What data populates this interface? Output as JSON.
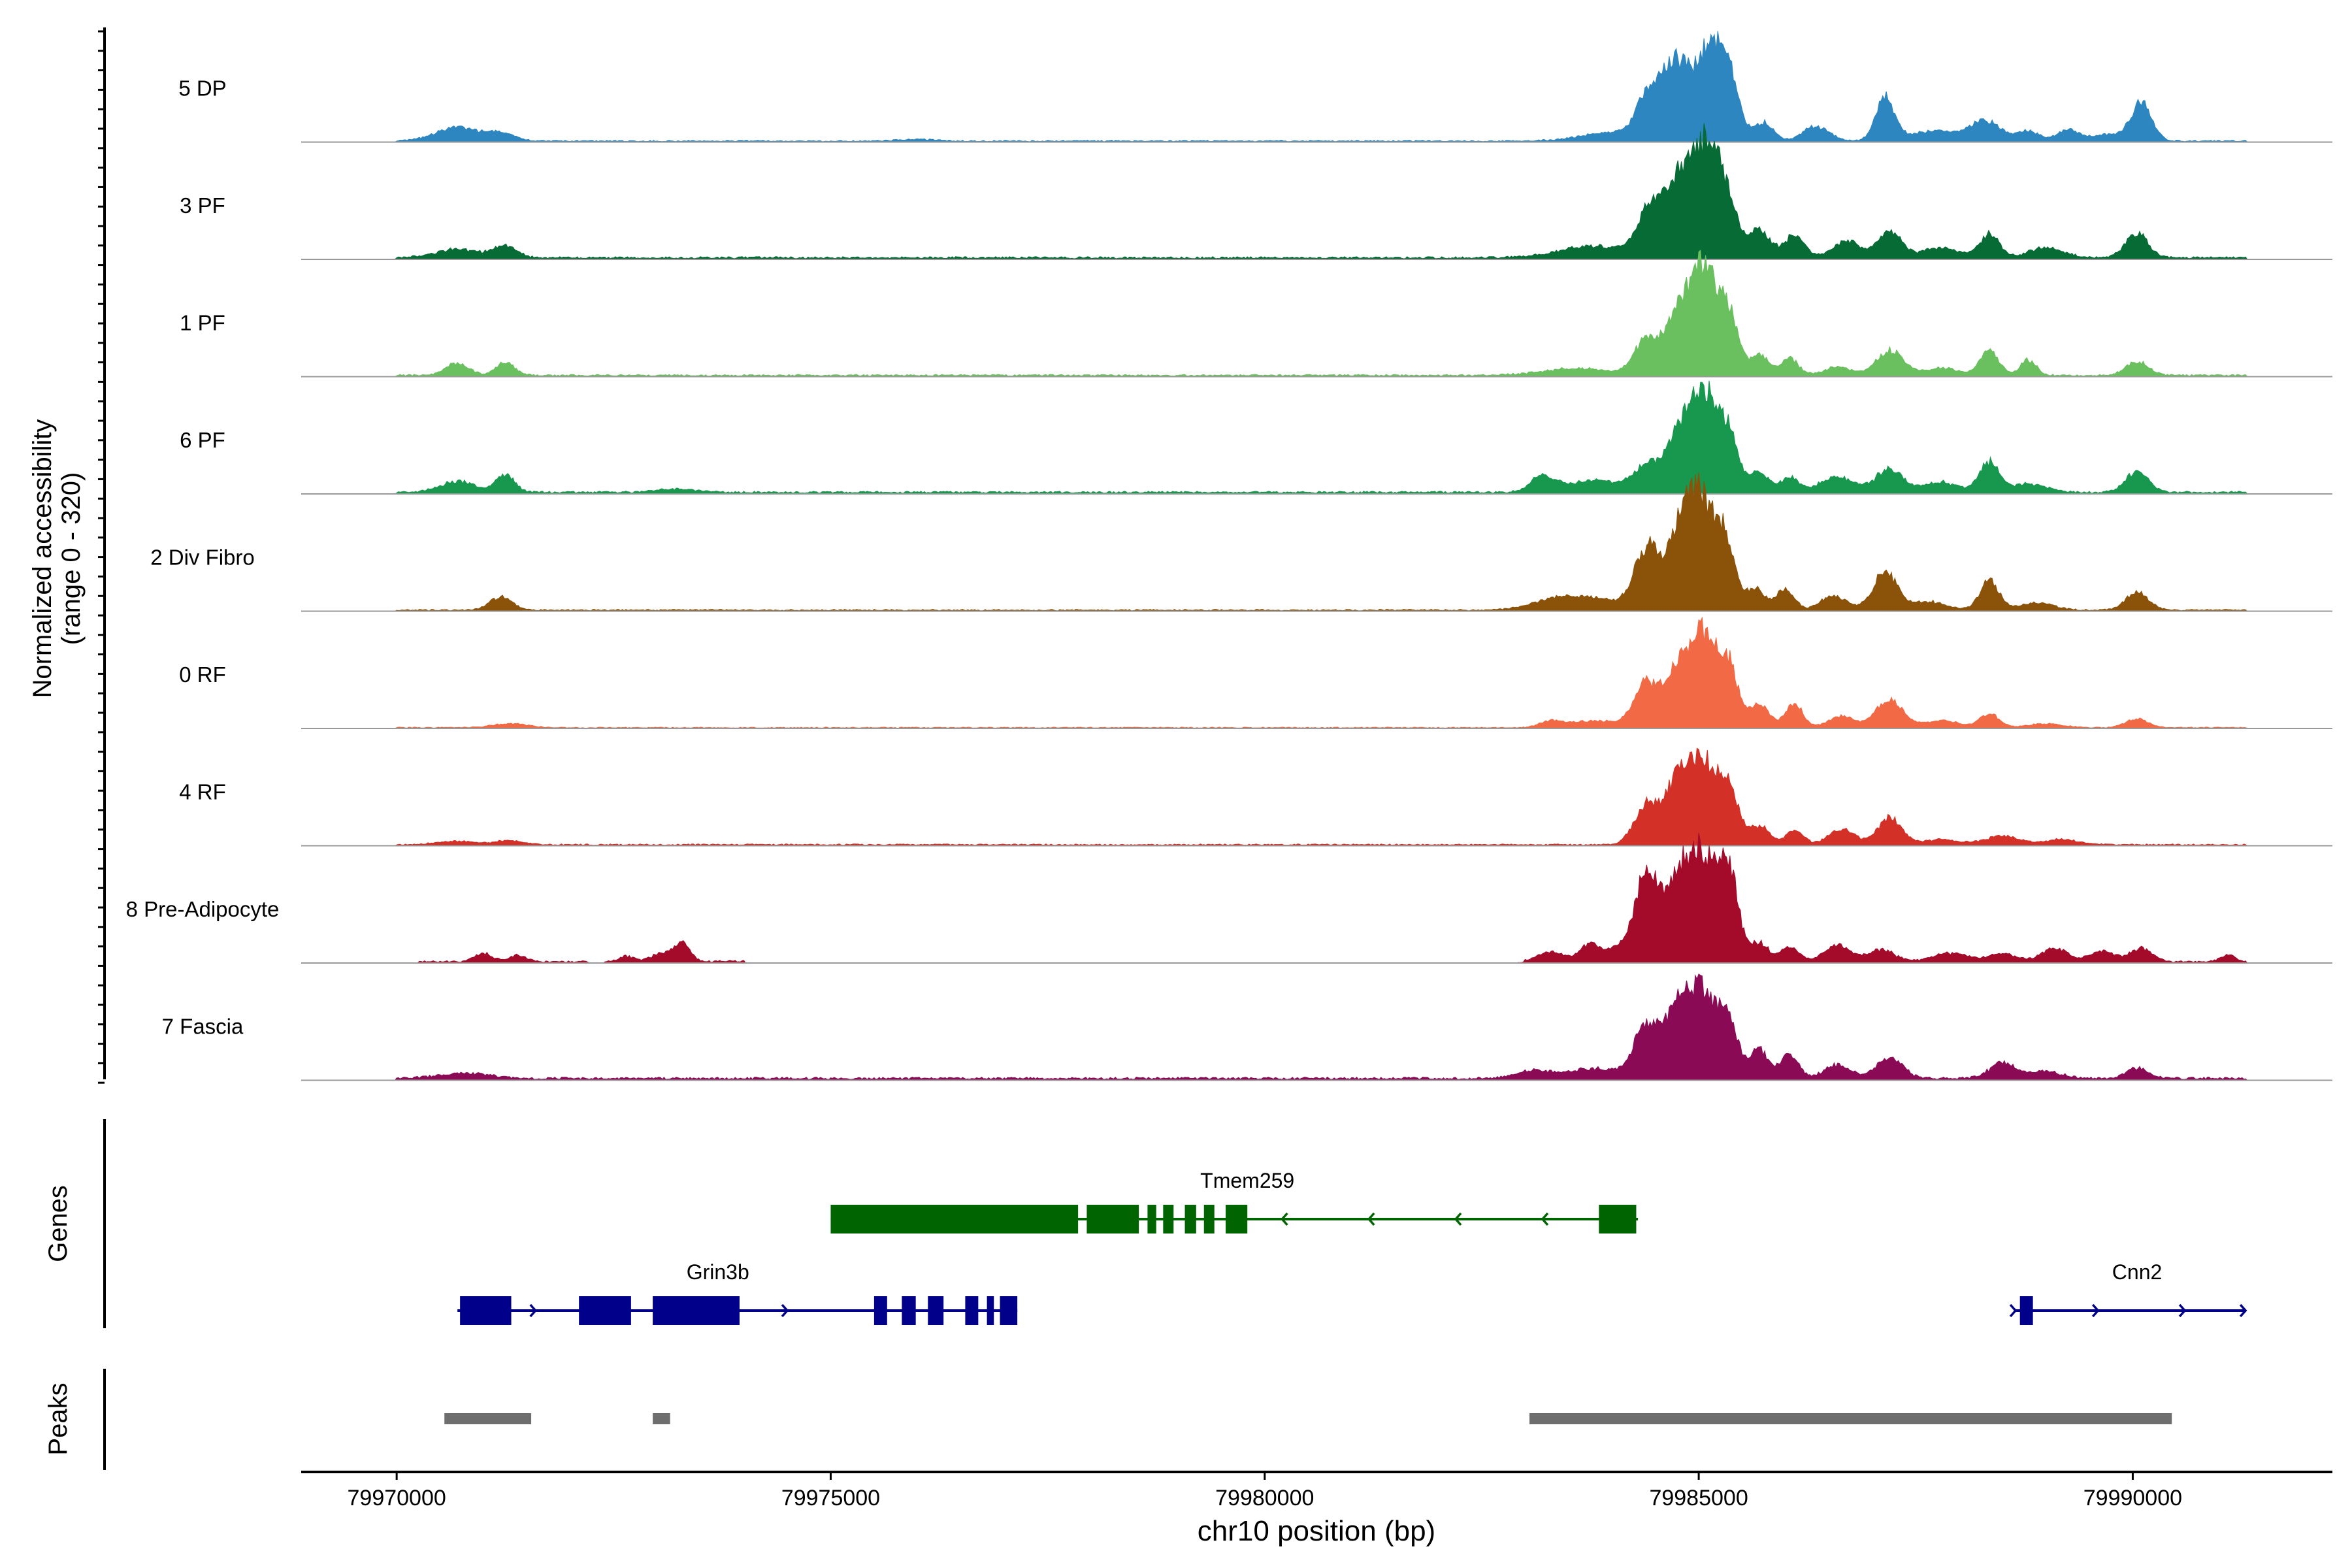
{
  "chart_data": {
    "type": "area",
    "title": "",
    "ylabel_line1": "Normalized accessibility",
    "ylabel_line2": "(range 0 - 320)",
    "ylim": [
      0,
      320
    ],
    "xlabel": "chr10 position (bp)",
    "xlim": [
      79968900,
      79992300
    ],
    "x_ticks": [
      79970000,
      79975000,
      79980000,
      79985000,
      79990000
    ],
    "x_tick_labels": [
      "79970000",
      "79975000",
      "79980000",
      "79985000",
      "79990000"
    ],
    "genes_label": "Genes",
    "peaks_label": "Peaks",
    "tracks": [
      {
        "name": "5 DP",
        "color": "#2E86C1",
        "noise": [
          [
            79970000,
            79991300,
            4
          ]
        ],
        "peaks": [
          [
            79970700,
            250,
            40
          ],
          [
            79971200,
            150,
            22
          ],
          [
            79976000,
            200,
            5
          ],
          [
            79984000,
            350,
            25
          ],
          [
            79984450,
            150,
            140
          ],
          [
            79984750,
            140,
            200
          ],
          [
            79985100,
            150,
            255
          ],
          [
            79985350,
            120,
            175
          ],
          [
            79985750,
            110,
            55
          ],
          [
            79986350,
            150,
            42
          ],
          [
            79987150,
            110,
            125
          ],
          [
            79987700,
            250,
            30
          ],
          [
            79988300,
            180,
            60
          ],
          [
            79988800,
            120,
            30
          ],
          [
            79989250,
            120,
            32
          ],
          [
            79990100,
            120,
            115
          ],
          [
            79989700,
            200,
            18
          ]
        ]
      },
      {
        "name": "3 PF",
        "color": "#076B35",
        "noise": [
          [
            79970000,
            79991300,
            6
          ]
        ],
        "peaks": [
          [
            79970700,
            250,
            25
          ],
          [
            79971250,
            130,
            35
          ],
          [
            79983800,
            400,
            35
          ],
          [
            79984450,
            150,
            140
          ],
          [
            79984750,
            140,
            180
          ],
          [
            79985050,
            160,
            295
          ],
          [
            79985300,
            140,
            160
          ],
          [
            79985700,
            120,
            80
          ],
          [
            79986100,
            120,
            65
          ],
          [
            79986700,
            150,
            50
          ],
          [
            79987200,
            140,
            75
          ],
          [
            79987800,
            200,
            30
          ],
          [
            79988350,
            110,
            70
          ],
          [
            79989000,
            200,
            30
          ],
          [
            79990050,
            130,
            70
          ]
        ]
      },
      {
        "name": "1 PF",
        "color": "#6ABF5E",
        "noise": [
          [
            79970000,
            79991300,
            5
          ]
        ],
        "peaks": [
          [
            79970700,
            130,
            35
          ],
          [
            79971250,
            110,
            38
          ],
          [
            79983600,
            400,
            20
          ],
          [
            79984400,
            140,
            105
          ],
          [
            79984750,
            140,
            150
          ],
          [
            79985050,
            160,
            305
          ],
          [
            79985350,
            110,
            165
          ],
          [
            79985700,
            110,
            60
          ],
          [
            79986050,
            100,
            50
          ],
          [
            79986600,
            150,
            25
          ],
          [
            79987200,
            150,
            75
          ],
          [
            79987800,
            200,
            20
          ],
          [
            79988350,
            110,
            70
          ],
          [
            79988800,
            90,
            45
          ],
          [
            79990050,
            130,
            40
          ]
        ]
      },
      {
        "name": "6 PF",
        "color": "#17984E",
        "noise": [
          [
            79970000,
            79991300,
            6
          ]
        ],
        "peaks": [
          [
            79970700,
            200,
            32
          ],
          [
            79971250,
            110,
            50
          ],
          [
            79973200,
            200,
            10
          ],
          [
            79983200,
            130,
            45
          ],
          [
            79983800,
            350,
            35
          ],
          [
            79984400,
            140,
            75
          ],
          [
            79984750,
            140,
            140
          ],
          [
            79985050,
            160,
            295
          ],
          [
            79985350,
            110,
            150
          ],
          [
            79985700,
            110,
            60
          ],
          [
            79986050,
            100,
            45
          ],
          [
            79986600,
            200,
            45
          ],
          [
            79987200,
            150,
            70
          ],
          [
            79987800,
            200,
            30
          ],
          [
            79988350,
            110,
            90
          ],
          [
            79988800,
            200,
            25
          ],
          [
            79990050,
            130,
            60
          ]
        ]
      },
      {
        "name": "2 Div Fibro",
        "color": "#8B5209",
        "noise": [
          [
            79970000,
            79991300,
            4
          ]
        ],
        "peaks": [
          [
            79971200,
            130,
            38
          ],
          [
            79983400,
            300,
            35
          ],
          [
            79983900,
            250,
            25
          ],
          [
            79984400,
            140,
            180
          ],
          [
            79984750,
            140,
            160
          ],
          [
            79985000,
            160,
            325
          ],
          [
            79985300,
            110,
            195
          ],
          [
            79985650,
            110,
            65
          ],
          [
            79986000,
            100,
            65
          ],
          [
            79986550,
            150,
            40
          ],
          [
            79987150,
            140,
            110
          ],
          [
            79987650,
            200,
            25
          ],
          [
            79988350,
            110,
            85
          ],
          [
            79988900,
            200,
            20
          ],
          [
            79990050,
            130,
            55
          ]
        ]
      },
      {
        "name": "0 RF",
        "color": "#F26A45",
        "noise": [
          [
            79970000,
            79991300,
            3
          ]
        ],
        "peaks": [
          [
            79971300,
            200,
            12
          ],
          [
            79983300,
            120,
            18
          ],
          [
            79983800,
            300,
            20
          ],
          [
            79984400,
            140,
            130
          ],
          [
            79984750,
            140,
            150
          ],
          [
            79985050,
            160,
            265
          ],
          [
            79985350,
            110,
            160
          ],
          [
            79985700,
            110,
            70
          ],
          [
            79986100,
            100,
            70
          ],
          [
            79986650,
            150,
            35
          ],
          [
            79987200,
            150,
            85
          ],
          [
            79987800,
            200,
            20
          ],
          [
            79988350,
            110,
            40
          ],
          [
            79989000,
            200,
            12
          ],
          [
            79990050,
            130,
            25
          ]
        ]
      },
      {
        "name": "4 RF",
        "color": "#D33128",
        "noise": [
          [
            79970000,
            79991300,
            4
          ]
        ],
        "peaks": [
          [
            79970700,
            250,
            10
          ],
          [
            79971300,
            150,
            12
          ],
          [
            79984400,
            140,
            115
          ],
          [
            79984750,
            140,
            170
          ],
          [
            79985050,
            160,
            240
          ],
          [
            79985350,
            110,
            160
          ],
          [
            79985700,
            110,
            55
          ],
          [
            79986100,
            100,
            45
          ],
          [
            79986650,
            150,
            45
          ],
          [
            79987200,
            140,
            80
          ],
          [
            79987800,
            200,
            15
          ],
          [
            79988500,
            200,
            25
          ],
          [
            79989200,
            200,
            15
          ]
        ]
      },
      {
        "name": "8 Pre-Adipocyte",
        "color": "#A40A2A",
        "noise": [
          [
            79970250,
            79972200,
            5
          ],
          [
            79972400,
            79974000,
            6
          ],
          [
            79983000,
            79991300,
            5
          ]
        ],
        "peaks": [
          [
            79971000,
            100,
            25
          ],
          [
            79971400,
            100,
            18
          ],
          [
            79972650,
            80,
            15
          ],
          [
            79973100,
            150,
            25
          ],
          [
            79973300,
            80,
            50
          ],
          [
            79983300,
            150,
            30
          ],
          [
            79983750,
            120,
            50
          ],
          [
            79984050,
            120,
            35
          ],
          [
            79984400,
            140,
            255
          ],
          [
            79984750,
            140,
            215
          ],
          [
            79985050,
            160,
            310
          ],
          [
            79985350,
            110,
            240
          ],
          [
            79985700,
            110,
            55
          ],
          [
            79986050,
            100,
            45
          ],
          [
            79986600,
            150,
            50
          ],
          [
            79987100,
            150,
            35
          ],
          [
            79987900,
            200,
            25
          ],
          [
            79988500,
            150,
            25
          ],
          [
            79989100,
            150,
            40
          ],
          [
            79989650,
            150,
            30
          ],
          [
            79990100,
            120,
            40
          ],
          [
            79991100,
            80,
            20
          ]
        ]
      },
      {
        "name": "7 Fascia",
        "color": "#8B0A55",
        "noise": [
          [
            79970000,
            79991300,
            7
          ]
        ],
        "peaks": [
          [
            79970800,
            300,
            15
          ],
          [
            79983100,
            200,
            22
          ],
          [
            79983800,
            300,
            28
          ],
          [
            79984400,
            140,
            155
          ],
          [
            79984750,
            140,
            185
          ],
          [
            79985050,
            160,
            250
          ],
          [
            79985350,
            110,
            150
          ],
          [
            79985700,
            110,
            85
          ],
          [
            79986050,
            100,
            70
          ],
          [
            79986600,
            150,
            40
          ],
          [
            79987200,
            150,
            60
          ],
          [
            79988500,
            150,
            45
          ],
          [
            79989000,
            200,
            20
          ],
          [
            79990050,
            130,
            30
          ]
        ]
      }
    ],
    "genes": [
      {
        "name": "Tmem259",
        "color": "#006400",
        "strand": "-",
        "row": 1,
        "start": 79975000,
        "end": 79984300,
        "exons": [
          [
            79975000,
            79977850
          ],
          [
            79977950,
            79978550
          ],
          [
            79978650,
            79978750
          ],
          [
            79978830,
            79978950
          ],
          [
            79979080,
            79979210
          ],
          [
            79979300,
            79979420
          ],
          [
            79979550,
            79979800
          ],
          [
            79983850,
            79984280
          ]
        ],
        "arrows": [
          79980200,
          79981200,
          79982200,
          79983200
        ],
        "label_x": 79979800
      },
      {
        "name": "Grin3b",
        "color": "#00008B",
        "strand": "+",
        "row": 2,
        "start": 79970700,
        "end": 79977150,
        "exons": [
          [
            79970730,
            79971320
          ],
          [
            79972100,
            79972700
          ],
          [
            79972950,
            79973950
          ],
          [
            79975500,
            79975650
          ],
          [
            79975820,
            79975980
          ],
          [
            79976120,
            79976300
          ],
          [
            79976550,
            79976700
          ],
          [
            79976800,
            79976880
          ],
          [
            79976950,
            79977150
          ]
        ],
        "arrows": [
          79971600,
          79972400,
          79974500
        ],
        "label_x": 79973700
      },
      {
        "name": "Cnn2",
        "color": "#00008B",
        "strand": "+",
        "row": 2,
        "start": 79988650,
        "end": 79991300,
        "exons": [
          [
            79988700,
            79988850
          ]
        ],
        "arrows": [
          79988650,
          79989600,
          79990600,
          79991300
        ],
        "label_x": 79990050
      }
    ],
    "peak_regions": [
      [
        79970550,
        79971550
      ],
      [
        79972950,
        79973150
      ],
      [
        79983050,
        79990450
      ]
    ],
    "peak_color": "#6E6E6E"
  }
}
